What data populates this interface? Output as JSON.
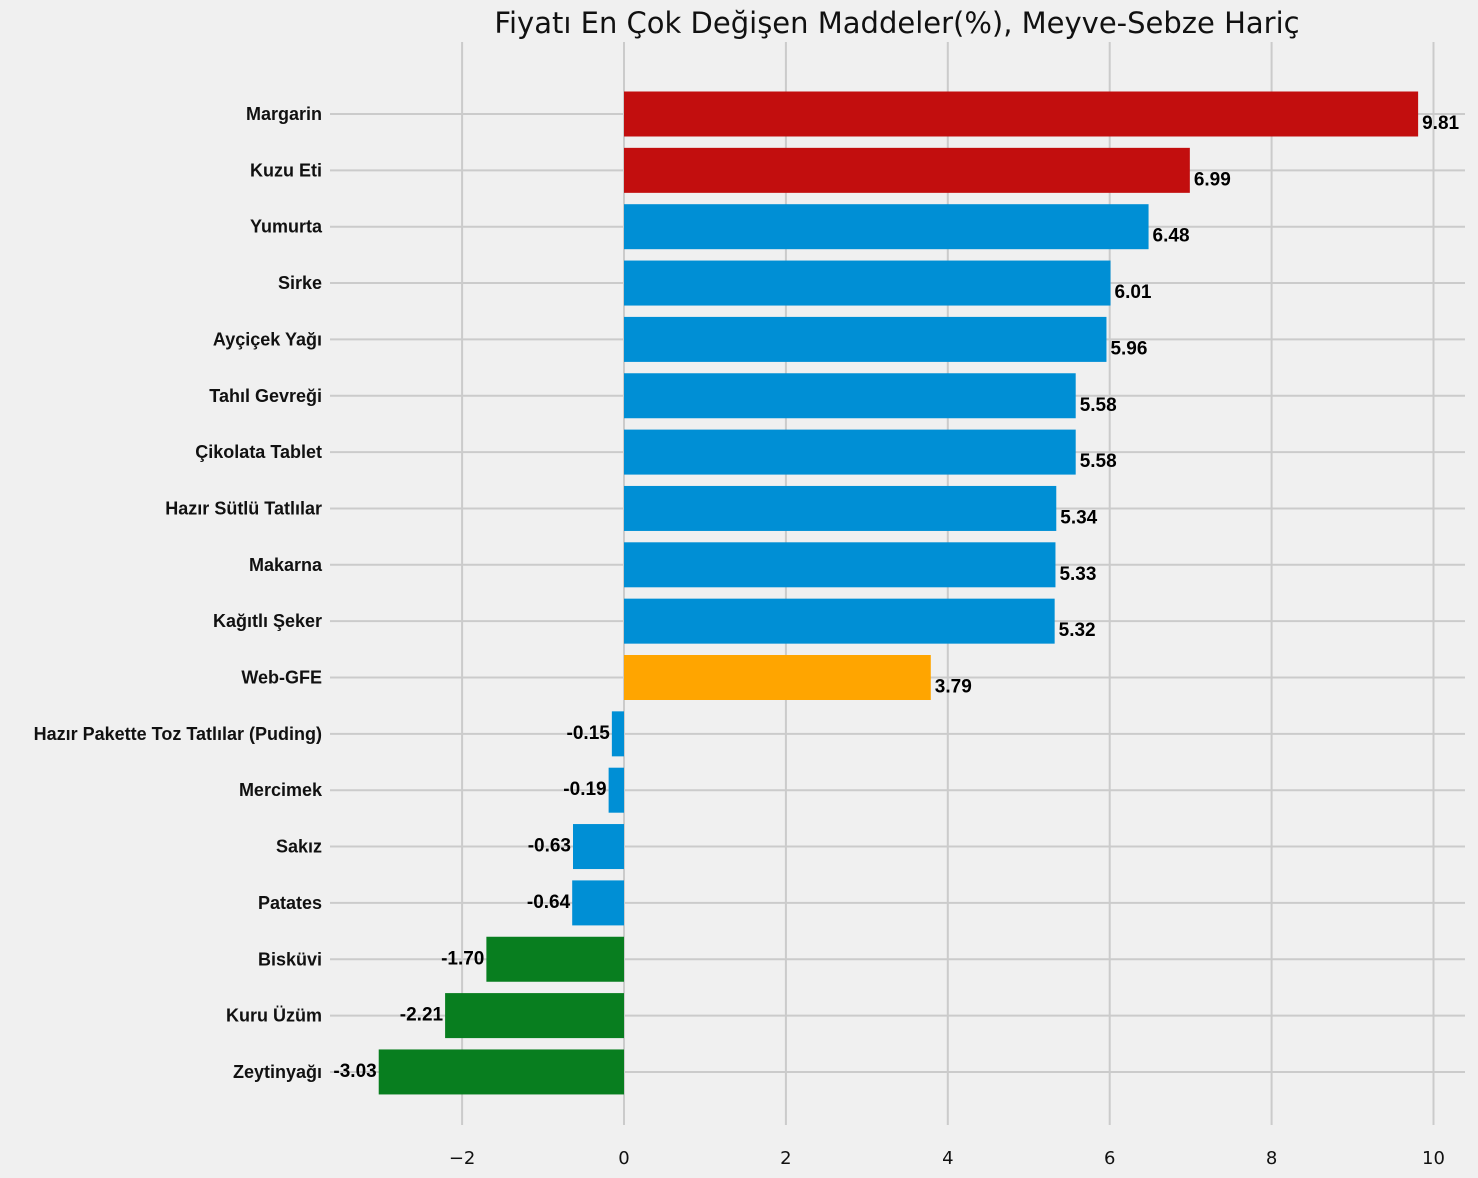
{
  "chart_data": {
    "type": "bar",
    "orientation": "horizontal",
    "title": "Fiyatı En Çok Değişen Maddeler(%), Meyve-Sebze Hariç",
    "xlabel": "",
    "ylabel": "",
    "categories": [
      "Margarin",
      "Kuzu Eti",
      "Yumurta",
      "Sirke",
      "Ayçiçek Yağı",
      "Tahıl Gevreği",
      "Çikolata Tablet",
      "Hazır Sütlü Tatlılar",
      "Makarna",
      "Kağıtlı Şeker",
      "Web-GFE",
      "Hazır Pakette Toz Tatlılar (Puding)",
      "Mercimek",
      "Sakız",
      "Patates",
      "Bisküvi",
      "Kuru Üzüm",
      "Zeytinyağı"
    ],
    "values": [
      9.81,
      6.99,
      6.48,
      6.01,
      5.96,
      5.58,
      5.58,
      5.34,
      5.33,
      5.32,
      3.79,
      -0.15,
      -0.19,
      -0.63,
      -0.64,
      -1.7,
      -2.21,
      -3.03
    ],
    "value_labels": [
      "9.81",
      "6.99",
      "6.48",
      "6.01",
      "5.96",
      "5.58",
      "5.58",
      "5.34",
      "5.33",
      "5.32",
      "3.79",
      "-0.15",
      "-0.19",
      "-0.63",
      "-0.64",
      "-1.70",
      "-2.21",
      "-3.03"
    ],
    "bar_colors": [
      "#c20e0e",
      "#c20e0e",
      "#008fd5",
      "#008fd5",
      "#008fd5",
      "#008fd5",
      "#008fd5",
      "#008fd5",
      "#008fd5",
      "#008fd5",
      "#ffa500",
      "#008fd5",
      "#008fd5",
      "#008fd5",
      "#008fd5",
      "#087e1f",
      "#087e1f",
      "#087e1f"
    ],
    "xticks": [
      -2,
      0,
      2,
      4,
      6,
      8,
      10
    ],
    "xtick_labels": [
      "−2",
      "0",
      "2",
      "4",
      "6",
      "8",
      "10"
    ],
    "xlim": [
      -3.65,
      10.4
    ],
    "grid": true,
    "legend": "none"
  }
}
